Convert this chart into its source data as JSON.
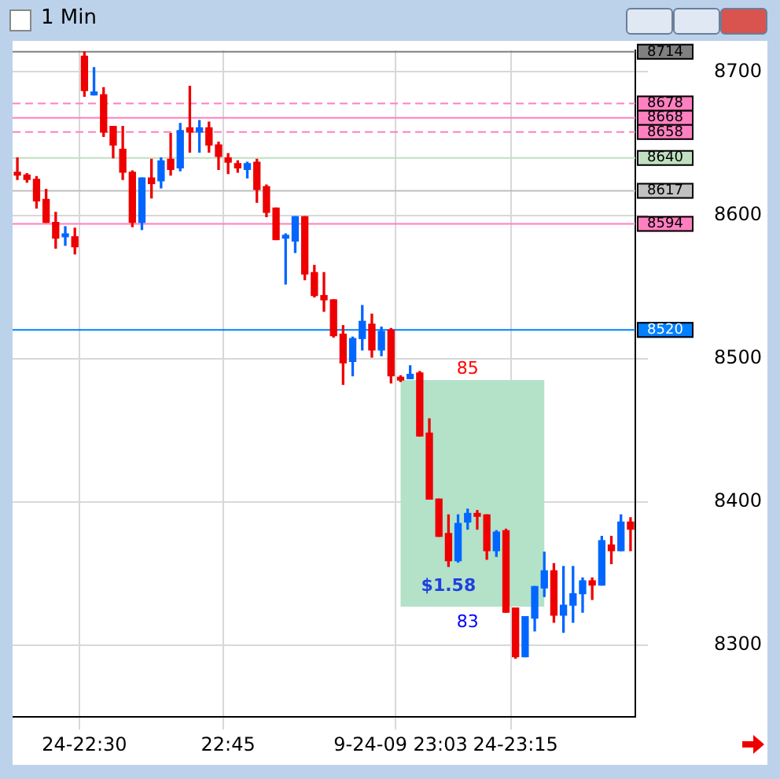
{
  "chart_data": {
    "type": "candlestick",
    "title": "1 Min",
    "categories": [
      null,
      null,
      null,
      null,
      null,
      null,
      null,
      "24-22:30",
      null,
      null,
      null,
      null,
      null,
      null,
      null,
      null,
      null,
      null,
      null,
      null,
      null,
      null,
      "22:45",
      null,
      null,
      null,
      null,
      null,
      null,
      null,
      null,
      null,
      null,
      null,
      null,
      null,
      null,
      null,
      null,
      null,
      "9-24-09 23:03",
      null,
      null,
      null,
      null,
      null,
      null,
      null,
      null,
      null,
      null,
      null,
      "24-23:15",
      null,
      null,
      null,
      null,
      null,
      null,
      null,
      null,
      null,
      null,
      null,
      null
    ],
    "ohlc": [
      [
        8630,
        8640,
        8625,
        8628
      ],
      [
        8628,
        8629,
        8623,
        8625
      ],
      [
        8625,
        8627,
        8605,
        8610
      ],
      [
        8611,
        8618,
        8595,
        8595
      ],
      [
        8595,
        8602,
        8577,
        8584
      ],
      [
        8585,
        8592,
        8579,
        8587
      ],
      [
        8585,
        8591,
        8573,
        8578
      ],
      [
        8711,
        8714,
        8683,
        8687
      ],
      [
        8684,
        8703,
        8684,
        8686
      ],
      [
        8684,
        8689,
        8655,
        8658
      ],
      [
        8662,
        8662,
        8640,
        8649
      ],
      [
        8646,
        8662,
        8625,
        8630
      ],
      [
        8630,
        8631,
        8592,
        8595
      ],
      [
        8595,
        8626,
        8590,
        8626
      ],
      [
        8626,
        8639,
        8612,
        8622
      ],
      [
        8624,
        8640,
        8619,
        8638
      ],
      [
        8639,
        8657,
        8628,
        8632
      ],
      [
        8633,
        8664,
        8631,
        8659
      ],
      [
        8661,
        8690,
        8644,
        8658
      ],
      [
        8658,
        8666,
        8644,
        8661
      ],
      [
        8661,
        8665,
        8644,
        8649
      ],
      [
        8649,
        8651,
        8632,
        8641
      ],
      [
        8640,
        8643,
        8629,
        8637
      ],
      [
        8636,
        8638,
        8630,
        8633
      ],
      [
        8632,
        8637,
        8626,
        8636
      ],
      [
        8637,
        8639,
        8609,
        8618
      ],
      [
        8620,
        8621,
        8599,
        8602
      ],
      [
        8605,
        8605,
        8583,
        8583
      ],
      [
        8584,
        8587,
        8552,
        8586
      ],
      [
        8582,
        8599,
        8574,
        8599
      ],
      [
        8599,
        8599,
        8555,
        8559
      ],
      [
        8560,
        8565,
        8543,
        8544
      ],
      [
        8544,
        8560,
        8533,
        8541
      ],
      [
        8541,
        8541,
        8515,
        8516
      ],
      [
        8517,
        8523,
        8482,
        8497
      ],
      [
        8498,
        8515,
        8488,
        8514
      ],
      [
        8514,
        8537,
        8506,
        8526
      ],
      [
        8524,
        8531,
        8501,
        8506
      ],
      [
        8506,
        8522,
        8502,
        8519
      ],
      [
        8520,
        8521,
        8483,
        8488
      ],
      [
        8487,
        8488,
        8484,
        8485
      ],
      [
        8486,
        8495,
        8486,
        8489
      ],
      [
        8490,
        8491,
        8446,
        8446
      ],
      [
        8448,
        8458,
        8402,
        8402
      ],
      [
        8402,
        8402,
        8376,
        8376
      ],
      [
        8378,
        8391,
        8355,
        8359
      ],
      [
        8359,
        8391,
        8358,
        8385
      ],
      [
        8386,
        8395,
        8381,
        8392
      ],
      [
        8392,
        8394,
        8381,
        8390
      ],
      [
        8391,
        8391,
        8360,
        8366
      ],
      [
        8366,
        8380,
        8362,
        8379
      ],
      [
        8380,
        8381,
        8323,
        8323
      ],
      [
        8326,
        8326,
        8291,
        8292
      ],
      [
        8292,
        8320,
        8292,
        8320
      ],
      [
        8319,
        8341,
        8310,
        8341
      ],
      [
        8340,
        8365,
        8334,
        8352
      ],
      [
        8352,
        8357,
        8316,
        8321
      ],
      [
        8321,
        8355,
        8309,
        8328
      ],
      [
        8328,
        8355,
        8316,
        8336
      ],
      [
        8336,
        8347,
        8323,
        8345
      ],
      [
        8345,
        8347,
        8332,
        8342
      ],
      [
        8342,
        8376,
        8342,
        8373
      ],
      [
        8370,
        8376,
        8357,
        8366
      ],
      [
        8366,
        8391,
        8366,
        8386
      ],
      [
        8386,
        8389,
        8366,
        8381
      ]
    ],
    "colors": [
      "#ee0000",
      "#ee0000",
      "#ee0000",
      "#ee0000",
      "#ee0000",
      "#0066ff",
      "#ee0000",
      "#ee0000",
      "#0066ff",
      "#ee0000",
      "#ee0000",
      "#ee0000",
      "#ee0000",
      "#0066ff",
      "#ee0000",
      "#0066ff",
      "#ee0000",
      "#0066ff",
      "#ee0000",
      "#0066ff",
      "#ee0000",
      "#ee0000",
      "#ee0000",
      "#ee0000",
      "#0066ff",
      "#ee0000",
      "#ee0000",
      "#ee0000",
      "#0066ff",
      "#0066ff",
      "#ee0000",
      "#ee0000",
      "#ee0000",
      "#ee0000",
      "#ee0000",
      "#0066ff",
      "#0066ff",
      "#ee0000",
      "#0066ff",
      "#ee0000",
      "#ee0000",
      "#0066ff",
      "#ee0000",
      "#ee0000",
      "#ee0000",
      "#ee0000",
      "#0066ff",
      "#0066ff",
      "#ee0000",
      "#ee0000",
      "#0066ff",
      "#ee0000",
      "#ee0000",
      "#0066ff",
      "#0066ff",
      "#0066ff",
      "#ee0000",
      "#0066ff",
      "#0066ff",
      "#0066ff",
      "#ee0000",
      "#0066ff",
      "#ee0000",
      "#0066ff",
      "#ee0000"
    ],
    "ylim": [
      8250,
      8715
    ],
    "yticks": [
      8300,
      8400,
      8500,
      8600,
      8700
    ],
    "grid": true,
    "ref_lines": [
      {
        "axis": "y",
        "value": 8714,
        "label": "8714",
        "color": "#808080"
      },
      {
        "axis": "y",
        "value": 8678,
        "label": "8678",
        "color": "#ff80c0",
        "line_style": "dashed"
      },
      {
        "axis": "y",
        "value": 8668,
        "label": "8668",
        "color": "#ff80c0"
      },
      {
        "axis": "y",
        "value": 8658,
        "label": "8658",
        "color": "#ff80c0",
        "line_style": "dashed"
      },
      {
        "axis": "y",
        "value": 8640,
        "label": "8640",
        "color": "#c0e0c0"
      },
      {
        "axis": "y",
        "value": 8617,
        "label": "8617",
        "color": "#c0c0c0"
      },
      {
        "axis": "y",
        "value": 8594,
        "label": "8594",
        "color": "#ff80c0"
      },
      {
        "axis": "y",
        "value": 8520,
        "label": "8520",
        "color": "#0080ff"
      }
    ],
    "bands": [
      {
        "axis": "y",
        "from": 8327,
        "to": 8485,
        "color": "#b3e2c9"
      }
    ],
    "annotations": [
      {
        "text": "85",
        "y": 8485
      },
      {
        "text": "83",
        "y": 8327
      },
      {
        "text": "$1.58",
        "y": 8330
      }
    ]
  }
}
